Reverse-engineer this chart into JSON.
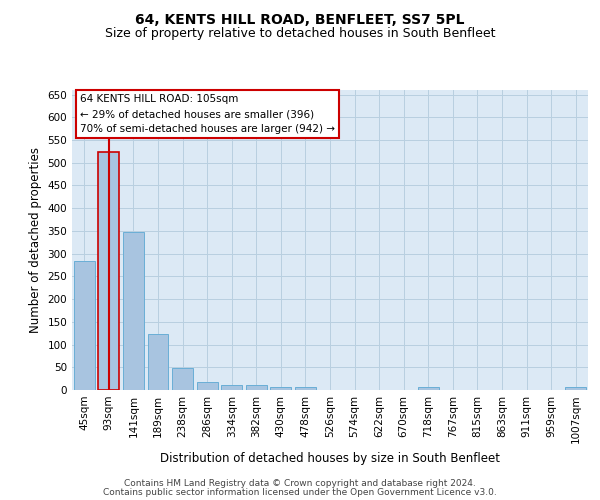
{
  "title": "64, KENTS HILL ROAD, BENFLEET, SS7 5PL",
  "subtitle": "Size of property relative to detached houses in South Benfleet",
  "xlabel": "Distribution of detached houses by size in South Benfleet",
  "ylabel": "Number of detached properties",
  "categories": [
    "45sqm",
    "93sqm",
    "141sqm",
    "189sqm",
    "238sqm",
    "286sqm",
    "334sqm",
    "382sqm",
    "430sqm",
    "478sqm",
    "526sqm",
    "574sqm",
    "622sqm",
    "670sqm",
    "718sqm",
    "767sqm",
    "815sqm",
    "863sqm",
    "911sqm",
    "959sqm",
    "1007sqm"
  ],
  "values": [
    283,
    523,
    347,
    123,
    49,
    17,
    11,
    11,
    6,
    6,
    0,
    0,
    0,
    0,
    6,
    0,
    0,
    0,
    0,
    0,
    6
  ],
  "bar_color": "#a8c4e0",
  "bar_edge_color": "#6aaed6",
  "highlight_bar_index": 1,
  "highlight_edge_color": "#cc0000",
  "vline_color": "#cc0000",
  "ylim": [
    0,
    660
  ],
  "yticks": [
    0,
    50,
    100,
    150,
    200,
    250,
    300,
    350,
    400,
    450,
    500,
    550,
    600,
    650
  ],
  "annotation_title": "64 KENTS HILL ROAD: 105sqm",
  "annotation_line1": "← 29% of detached houses are smaller (396)",
  "annotation_line2": "70% of semi-detached houses are larger (942) →",
  "annotation_box_facecolor": "#ffffff",
  "annotation_box_edgecolor": "#cc0000",
  "footer_line1": "Contains HM Land Registry data © Crown copyright and database right 2024.",
  "footer_line2": "Contains public sector information licensed under the Open Government Licence v3.0.",
  "bg_color": "#ffffff",
  "plot_bg_color": "#dce9f5",
  "grid_color": "#b8cfe0",
  "title_fontsize": 10,
  "subtitle_fontsize": 9,
  "axis_label_fontsize": 8.5,
  "tick_fontsize": 7.5,
  "annotation_fontsize": 7.5,
  "footer_fontsize": 6.5
}
